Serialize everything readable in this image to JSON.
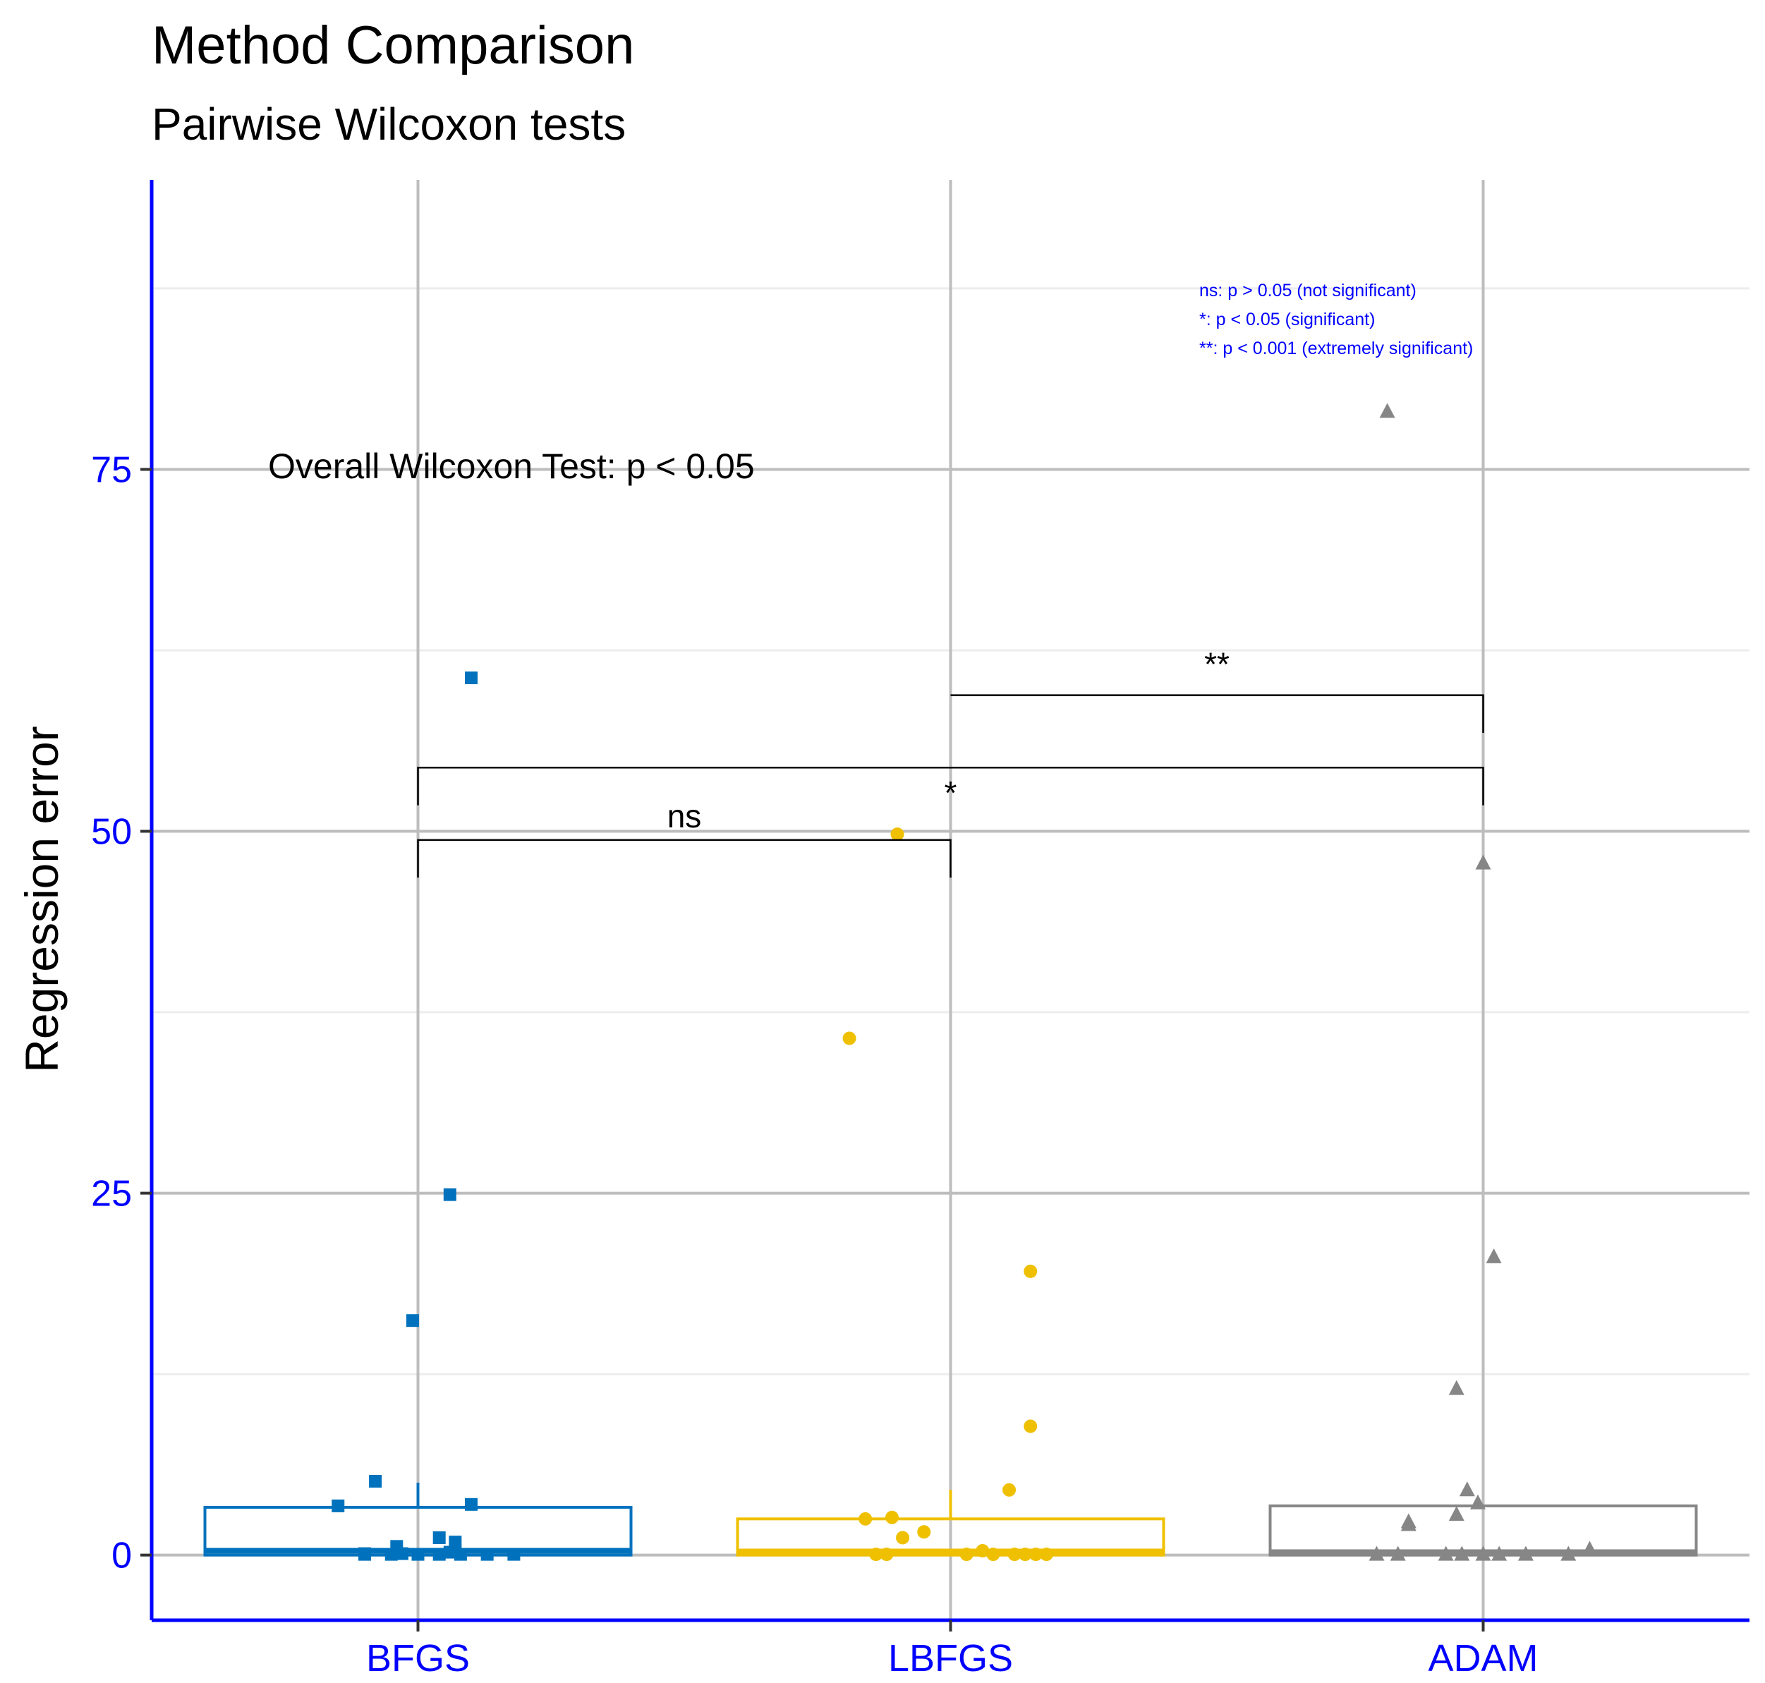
{
  "chart_data": {
    "type": "box",
    "title": "Method Comparison",
    "subtitle": "Pairwise Wilcoxon tests",
    "xlabel": "",
    "ylabel": "Regression error",
    "ylim": [
      -4.5,
      95
    ],
    "yticks": [
      0,
      25,
      50,
      75
    ],
    "grid": true,
    "categories": [
      "BFGS",
      "LBFGS",
      "ADAM"
    ],
    "colors": {
      "BFGS": "#0072bd",
      "LBFGS": "#efc000",
      "ADAM": "#868686",
      "axis": "#0000ff"
    },
    "series": [
      {
        "name": "BFGS",
        "marker": "square",
        "box": {
          "q1": 0,
          "median": 0.3,
          "q3": 3.3,
          "whisker_low": 0,
          "whisker_high": 5
        },
        "points": [
          [
            0.1,
            60.6
          ],
          [
            0.06,
            24.9
          ],
          [
            -0.01,
            16.2
          ],
          [
            -0.08,
            5.1
          ],
          [
            -0.15,
            3.4
          ],
          [
            0.1,
            3.5
          ],
          [
            -0.1,
            0.05
          ],
          [
            -0.05,
            0.05
          ],
          [
            -0.03,
            0.1
          ],
          [
            -0.04,
            0.6
          ],
          [
            0.0,
            0.05
          ],
          [
            0.04,
            0.05
          ],
          [
            0.08,
            0.05
          ],
          [
            0.13,
            0.05
          ],
          [
            0.18,
            0.05
          ],
          [
            0.04,
            1.2
          ],
          [
            0.07,
            0.9
          ],
          [
            0.06,
            0.2
          ],
          [
            -0.1,
            0.1
          ]
        ]
      },
      {
        "name": "LBFGS",
        "marker": "circle",
        "box": {
          "q1": 0,
          "median": 0.25,
          "q3": 2.5,
          "whisker_low": 0,
          "whisker_high": 4.5
        },
        "points": [
          [
            -0.1,
            49.8
          ],
          [
            -0.19,
            35.7
          ],
          [
            0.15,
            19.6
          ],
          [
            0.15,
            8.9
          ],
          [
            0.11,
            4.5
          ],
          [
            -0.16,
            2.5
          ],
          [
            -0.11,
            2.6
          ],
          [
            -0.05,
            1.6
          ],
          [
            -0.09,
            1.2
          ],
          [
            -0.14,
            0.05
          ],
          [
            -0.12,
            0.05
          ],
          [
            0.03,
            0.05
          ],
          [
            0.06,
            0.3
          ],
          [
            0.08,
            0.05
          ],
          [
            0.12,
            0.05
          ],
          [
            0.14,
            0.05
          ],
          [
            0.16,
            0.05
          ],
          [
            0.18,
            0.05
          ]
        ]
      },
      {
        "name": "ADAM",
        "marker": "triangle",
        "box": {
          "q1": 0,
          "median": 0.2,
          "q3": 3.4,
          "whisker_low": 0,
          "whisker_high": 3.5
        },
        "points": [
          [
            -0.18,
            79
          ],
          [
            0.0,
            47.8
          ],
          [
            0.02,
            20.6
          ],
          [
            -0.05,
            11.5
          ],
          [
            -0.03,
            4.5
          ],
          [
            -0.01,
            3.6
          ],
          [
            -0.05,
            2.8
          ],
          [
            -0.14,
            2.1
          ],
          [
            -0.14,
            2.3
          ],
          [
            -0.2,
            0.05
          ],
          [
            -0.16,
            0.05
          ],
          [
            -0.07,
            0.05
          ],
          [
            -0.04,
            0.05
          ],
          [
            0.0,
            0.05
          ],
          [
            0.03,
            0.05
          ],
          [
            0.08,
            0.05
          ],
          [
            0.16,
            0.05
          ],
          [
            0.2,
            0.4
          ]
        ]
      }
    ],
    "comparisons": [
      {
        "from": "BFGS",
        "to": "LBFGS",
        "y": 49.4,
        "left_tip": 46.8,
        "right_tip": 46.8,
        "label": "ns"
      },
      {
        "from": "BFGS",
        "to": "ADAM",
        "y": 54.4,
        "left_tip": 51.8,
        "right_tip": 51.8,
        "label": "*"
      },
      {
        "from": "LBFGS",
        "to": "ADAM",
        "y": 59.4,
        "left_tip": 59.4,
        "right_tip": 56.8,
        "label": "**"
      }
    ],
    "annotation": {
      "text": "Overall Wilcoxon Test: p < 0.05"
    },
    "legend_notes": [
      "ns: p > 0.05 (not significant)",
      "*: p < 0.05 (significant)",
      "**: p < 0.001 (extremely significant)"
    ],
    "legend_placement": "top-right"
  }
}
